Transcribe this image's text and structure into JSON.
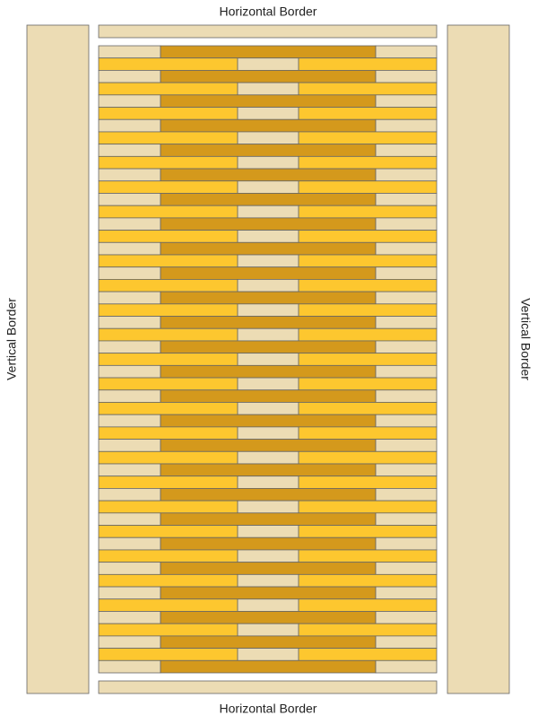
{
  "labels": {
    "top": "Horizontal Border",
    "bottom": "Horizontal Border",
    "left": "Vertical Border",
    "right": "Vertical Border"
  }
}
